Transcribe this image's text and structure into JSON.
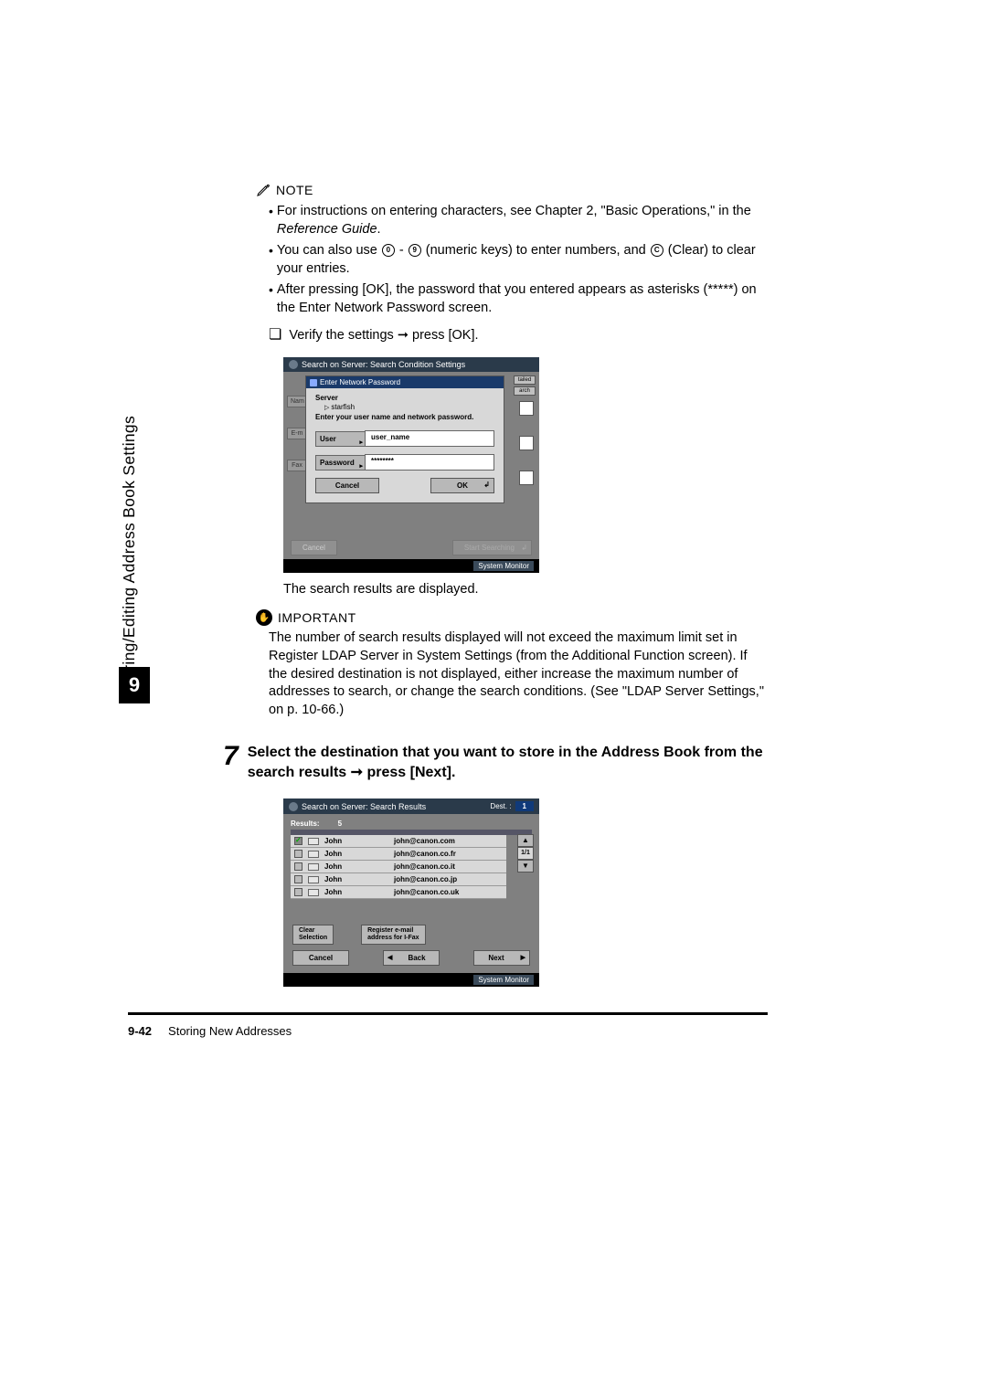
{
  "sidebar": {
    "section_title": "Storing/Editing Address Book Settings",
    "chapter": "9"
  },
  "note": {
    "label": "NOTE",
    "items": [
      {
        "pre": "For instructions on entering characters, see Chapter 2, \"Basic Operations,\" in the ",
        "italic": "Reference Guide",
        "post": "."
      },
      {
        "pre": "You can also use ",
        "mid": " (numeric keys) to enter numbers, and ",
        "post": " (Clear) to clear your entries."
      },
      {
        "full": "After pressing [OK], the password that you entered appears as asterisks (*****) on the Enter Network Password screen."
      }
    ]
  },
  "verify": "Verify the settings ➞ press [OK].",
  "ss1": {
    "title": "Search on Server: Search Condition Settings",
    "dialog_title": "Enter Network Password",
    "server_label": "Server",
    "server_name": "starfish",
    "instruction": "Enter your user name and network password.",
    "user_label": "User",
    "user_value": "user_name",
    "password_label": "Password",
    "password_value": "********",
    "cancel": "Cancel",
    "ok": "OK",
    "side_name": "Nam",
    "side_em": "E-m",
    "side_fax": "Fax",
    "side_right1": "tailed",
    "side_right2": "arch",
    "bottom_cancel": "Cancel",
    "bottom_search": "Start Searching",
    "system_monitor": "System Monitor"
  },
  "caption1": "The search results are displayed.",
  "important": {
    "label": "IMPORTANT",
    "text": "The number of search results displayed will not exceed the maximum limit set in Register LDAP Server in System Settings (from the Additional Function screen). If the desired destination is not displayed, either increase the maximum number of addresses to search, or change the search conditions. (See \"LDAP Server Settings,\" on p. 10-66.)"
  },
  "step7": {
    "number": "7",
    "text": "Select the destination that you want to store in the Address Book from the search results ➞ press [Next]."
  },
  "ss2": {
    "title": "Search on Server: Search Results",
    "dest_label": "Dest. :",
    "dest_count": "1",
    "results_label": "Results:",
    "results_count": "5",
    "rows": [
      {
        "checked": true,
        "name": "John",
        "email": "john@canon.com"
      },
      {
        "checked": false,
        "name": "John",
        "email": "john@canon.co.fr"
      },
      {
        "checked": false,
        "name": "John",
        "email": "john@canon.co.it"
      },
      {
        "checked": false,
        "name": "John",
        "email": "john@canon.co.jp"
      },
      {
        "checked": false,
        "name": "John",
        "email": "john@canon.co.uk"
      }
    ],
    "pager": "1/1",
    "scroll_up": "▲",
    "scroll_down": "▼",
    "clear_selection": "Clear\nSelection",
    "register_ifax": "Register e-mail\naddress for I-Fax",
    "cancel": "Cancel",
    "back": "Back",
    "next": "Next",
    "system_monitor": "System Monitor"
  },
  "footer": {
    "page": "9-42",
    "title": "Storing New Addresses"
  }
}
